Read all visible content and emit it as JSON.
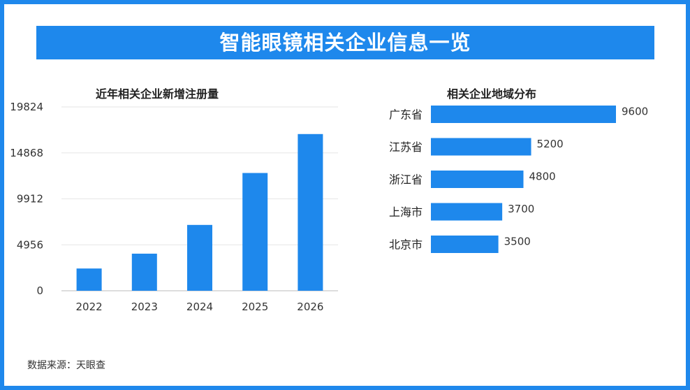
{
  "banner": {
    "title": "智能眼镜相关企业信息一览"
  },
  "source": {
    "text": "数据来源：天眼查"
  },
  "colors": {
    "accent": "#1e88ec",
    "bar": "#1e88ec"
  },
  "chart_data": [
    {
      "type": "bar",
      "title": "近年相关企业新增注册量",
      "categories": [
        "2022",
        "2023",
        "2024",
        "2025",
        "2026"
      ],
      "values": [
        2400,
        4000,
        7100,
        12700,
        16900
      ],
      "yticks": [
        "0",
        "4956",
        "9912",
        "14868",
        "19824"
      ],
      "ylim": [
        0,
        19824
      ],
      "grid": true
    },
    {
      "type": "bar",
      "orientation": "horizontal",
      "title": "相关企业地域分布",
      "categories": [
        "广东省",
        "江苏省",
        "浙江省",
        "上海市",
        "北京市"
      ],
      "values": [
        9600,
        5200,
        4800,
        3700,
        3500
      ],
      "data_labels": [
        "9600",
        "5200",
        "4800",
        "3700",
        "3500"
      ],
      "xlim": [
        0,
        9600
      ]
    }
  ]
}
